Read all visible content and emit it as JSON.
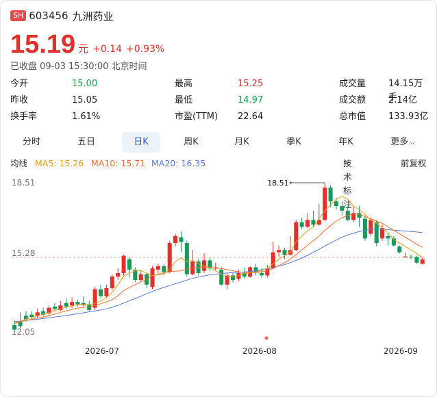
{
  "header": {
    "exchange_badge": "SH",
    "code": "603456",
    "name": "九洲药业"
  },
  "price": {
    "value": "15.19",
    "unit": "元",
    "change": "+0.14",
    "change_pct": "+0.93%"
  },
  "status": "已收盘 09-03 15:30:00 北京时间",
  "stats": [
    {
      "label": "今开",
      "value": "15.00",
      "color": "#17a34a"
    },
    {
      "label": "最高",
      "value": "15.25",
      "color": "#e0312b"
    },
    {
      "label": "成交量",
      "value": "14.15万手",
      "color": "#222"
    },
    {
      "label": "昨收",
      "value": "15.05",
      "color": "#222"
    },
    {
      "label": "最低",
      "value": "14.97",
      "color": "#17a34a"
    },
    {
      "label": "成交额",
      "value": "2.14亿",
      "color": "#222"
    },
    {
      "label": "换手率",
      "value": "1.61%",
      "color": "#222"
    },
    {
      "label": "市盈(TTM)",
      "value": "22.64",
      "color": "#222"
    },
    {
      "label": "总市值",
      "value": "133.93亿",
      "color": "#222"
    }
  ],
  "tabs": [
    "分时",
    "五日",
    "日K",
    "周K",
    "月K",
    "季K",
    "年K",
    "更多"
  ],
  "active_tab": "日K",
  "ma_legend": {
    "label": "均线",
    "ma5": "MA5: 15.26",
    "ma10": "MA10: 15.71",
    "ma20": "MA20: 16.35",
    "indicator_button": "技术标注",
    "adjust_button": "前复权"
  },
  "colors": {
    "up": "#e0312b",
    "down": "#1a9a5a",
    "ma5": "#e8a020",
    "ma10": "#f07030",
    "ma20": "#5a7bd8"
  },
  "chart_data": {
    "type": "candlestick",
    "ylim": [
      12.05,
      18.51
    ],
    "y_ticks": [
      "18.51",
      "15.28",
      "12.05"
    ],
    "high_marker": "18.51",
    "x_labels": [
      "2026-07",
      "2026-08",
      "2026-09"
    ],
    "candles": [
      [
        12.35,
        12.15,
        12.55,
        12.05
      ],
      [
        12.5,
        12.3,
        12.9,
        12.2
      ],
      [
        12.75,
        12.6,
        12.95,
        12.5
      ],
      [
        12.8,
        12.7,
        12.95,
        12.6
      ],
      [
        12.75,
        12.9,
        13.05,
        12.65
      ],
      [
        12.95,
        12.8,
        13.1,
        12.7
      ],
      [
        12.85,
        13.1,
        13.2,
        12.75
      ],
      [
        13.15,
        13.05,
        13.3,
        12.95
      ],
      [
        13.0,
        13.2,
        13.4,
        12.95
      ],
      [
        13.3,
        13.15,
        13.5,
        13.05
      ],
      [
        13.2,
        13.35,
        13.55,
        13.1
      ],
      [
        13.35,
        13.25,
        13.45,
        13.15
      ],
      [
        13.3,
        13.2,
        13.6,
        13.15
      ],
      [
        13.25,
        13.0,
        13.4,
        12.95
      ],
      [
        13.1,
        13.9,
        14.0,
        13.0
      ],
      [
        13.9,
        13.6,
        14.1,
        13.5
      ],
      [
        13.6,
        13.95,
        14.1,
        13.55
      ],
      [
        13.95,
        14.45,
        14.55,
        13.85
      ],
      [
        14.45,
        14.6,
        14.8,
        14.3
      ],
      [
        14.6,
        15.35,
        15.4,
        14.5
      ],
      [
        15.2,
        14.75,
        15.3,
        14.4
      ],
      [
        14.75,
        14.3,
        14.85,
        14.2
      ],
      [
        14.3,
        14.55,
        14.7,
        14.25
      ],
      [
        14.55,
        14.1,
        14.6,
        13.95
      ],
      [
        14.0,
        14.8,
        14.9,
        13.9
      ],
      [
        14.75,
        14.9,
        15.0,
        14.6
      ],
      [
        14.9,
        14.65,
        15.0,
        14.5
      ],
      [
        14.65,
        15.9,
        16.0,
        14.6
      ],
      [
        15.9,
        16.2,
        16.3,
        15.75
      ],
      [
        16.15,
        15.95,
        16.4,
        15.5
      ],
      [
        15.9,
        14.55,
        16.0,
        14.45
      ],
      [
        14.55,
        15.1,
        15.6,
        14.5
      ],
      [
        15.1,
        14.6,
        15.2,
        14.5
      ],
      [
        14.7,
        15.15,
        15.45,
        14.6
      ],
      [
        15.15,
        14.8,
        15.25,
        14.7
      ],
      [
        14.8,
        14.85,
        15.05,
        14.7
      ],
      [
        14.75,
        14.1,
        14.85,
        14.05
      ],
      [
        14.1,
        14.5,
        14.6,
        13.9
      ],
      [
        14.5,
        14.3,
        14.6,
        14.2
      ],
      [
        14.35,
        14.6,
        14.75,
        14.25
      ],
      [
        14.6,
        14.45,
        14.85,
        14.35
      ],
      [
        14.45,
        14.85,
        14.9,
        14.4
      ],
      [
        14.85,
        14.65,
        15.0,
        14.5
      ],
      [
        14.6,
        14.5,
        14.8,
        14.4
      ],
      [
        14.5,
        14.8,
        14.95,
        14.4
      ],
      [
        14.8,
        15.5,
        15.95,
        14.8
      ],
      [
        15.5,
        15.6,
        15.8,
        15.3
      ],
      [
        15.6,
        15.4,
        15.7,
        15.2
      ],
      [
        15.4,
        15.6,
        16.2,
        15.35
      ],
      [
        15.6,
        16.8,
        16.9,
        15.55
      ],
      [
        16.8,
        16.6,
        17.0,
        16.5
      ],
      [
        16.6,
        16.9,
        17.2,
        16.55
      ],
      [
        16.9,
        16.7,
        17.3,
        16.6
      ],
      [
        16.7,
        16.9,
        17.6,
        16.65
      ],
      [
        16.9,
        18.3,
        18.51,
        16.85
      ],
      [
        18.3,
        17.7,
        18.4,
        17.45
      ],
      [
        17.7,
        17.5,
        17.85,
        17.35
      ],
      [
        17.5,
        17.3,
        17.7,
        17.1
      ],
      [
        17.3,
        16.9,
        17.5,
        16.85
      ],
      [
        16.9,
        17.2,
        17.5,
        16.8
      ],
      [
        17.2,
        17.0,
        17.5,
        16.6
      ],
      [
        16.95,
        16.1,
        17.1,
        16.0
      ],
      [
        16.3,
        16.9,
        17.0,
        16.2
      ],
      [
        16.8,
        15.9,
        16.9,
        15.75
      ],
      [
        16.1,
        16.55,
        16.7,
        16.0
      ],
      [
        16.2,
        16.1,
        16.35,
        15.8
      ],
      [
        16.1,
        15.8,
        16.2,
        15.75
      ],
      [
        15.75,
        15.5,
        15.8,
        15.45
      ],
      [
        15.3,
        15.32,
        15.5,
        15.25
      ],
      [
        15.3,
        15.28,
        15.4,
        15.2
      ],
      [
        15.3,
        15.05,
        15.35,
        15.0
      ],
      [
        15.0,
        15.19,
        15.25,
        14.97
      ]
    ],
    "ma5": [
      12.4,
      12.5,
      12.62,
      12.66,
      12.74,
      12.83,
      12.88,
      12.98,
      13.05,
      13.12,
      13.18,
      13.23,
      13.25,
      13.22,
      13.3,
      13.38,
      13.53,
      13.77,
      14.1,
      14.47,
      14.6,
      14.7,
      14.72,
      14.6,
      14.5,
      14.52,
      14.55,
      14.77,
      15.1,
      15.26,
      15.09,
      15.15,
      15.0,
      14.9,
      14.85,
      14.7,
      14.55,
      14.47,
      14.43,
      14.5,
      14.58,
      14.6,
      14.65,
      14.7,
      14.8,
      15.0,
      15.2,
      15.35,
      15.5,
      15.95,
      16.2,
      16.42,
      16.6,
      16.95,
      17.3,
      17.55,
      17.8,
      17.92,
      17.8,
      17.5,
      17.35,
      17.15,
      16.9,
      16.75,
      16.55,
      16.35,
      16.05,
      15.9,
      15.75,
      15.6,
      15.45,
      15.26
    ],
    "ma10": [
      12.45,
      12.5,
      12.55,
      12.6,
      12.65,
      12.7,
      12.75,
      12.82,
      12.9,
      12.96,
      13.03,
      13.08,
      13.12,
      13.14,
      13.2,
      13.27,
      13.35,
      13.45,
      13.62,
      13.84,
      13.98,
      14.1,
      14.22,
      14.34,
      14.47,
      14.55,
      14.62,
      14.66,
      14.68,
      14.7,
      14.78,
      14.82,
      14.85,
      14.86,
      14.85,
      14.82,
      14.8,
      14.75,
      14.7,
      14.66,
      14.62,
      14.61,
      14.62,
      14.65,
      14.7,
      14.8,
      14.92,
      15.05,
      15.2,
      15.4,
      15.6,
      15.8,
      16.0,
      16.2,
      16.45,
      16.65,
      16.85,
      17.0,
      17.1,
      17.15,
      17.15,
      17.05,
      16.95,
      16.85,
      16.75,
      16.6,
      16.45,
      16.3,
      16.15,
      16.0,
      15.85,
      15.71
    ],
    "ma20": [
      12.5,
      12.52,
      12.55,
      12.58,
      12.6,
      12.63,
      12.66,
      12.7,
      12.73,
      12.77,
      12.8,
      12.84,
      12.88,
      12.92,
      12.96,
      13.0,
      13.05,
      13.12,
      13.2,
      13.3,
      13.4,
      13.5,
      13.6,
      13.7,
      13.8,
      13.9,
      13.98,
      14.06,
      14.14,
      14.22,
      14.3,
      14.37,
      14.43,
      14.48,
      14.52,
      14.55,
      14.58,
      14.6,
      14.62,
      14.63,
      14.65,
      14.67,
      14.7,
      14.74,
      14.78,
      14.84,
      14.9,
      14.97,
      15.05,
      15.15,
      15.25,
      15.37,
      15.5,
      15.63,
      15.77,
      15.9,
      16.03,
      16.15,
      16.25,
      16.33,
      16.4,
      16.45,
      16.48,
      16.5,
      16.5,
      16.48,
      16.46,
      16.44,
      16.42,
      16.4,
      16.38,
      16.35
    ]
  }
}
